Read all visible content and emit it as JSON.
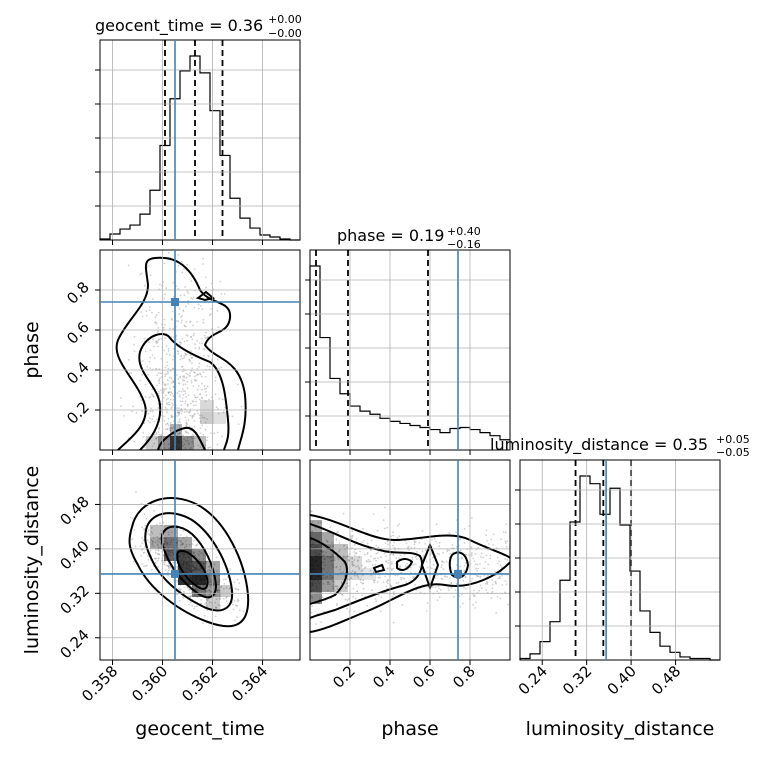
{
  "chart_data": {
    "type": "corner",
    "truth_color": "#4682b4",
    "grid": true,
    "parameters": [
      {
        "name": "geocent_time",
        "range": [
          0.3575,
          0.3655
        ],
        "ticks": [
          "0.358",
          "0.360",
          "0.362",
          "0.364"
        ],
        "tick_values": [
          0.358,
          0.36,
          0.362,
          0.364
        ],
        "truth": 0.3605,
        "title_main": "geocent_time = 0.36",
        "title_sup": "+0.00",
        "title_sub": "−0.00",
        "quantiles": [
          0.3601,
          0.3613,
          0.3624
        ]
      },
      {
        "name": "phase",
        "range": [
          0.0,
          1.0
        ],
        "ticks": [
          "0.2",
          "0.4",
          "0.6",
          "0.8"
        ],
        "tick_values": [
          0.2,
          0.4,
          0.6,
          0.8
        ],
        "truth": 0.74,
        "title_main": "phase = 0.19",
        "title_sup": "+0.40",
        "title_sub": "−0.16",
        "quantiles": [
          0.03,
          0.19,
          0.59
        ]
      },
      {
        "name": "luminosity_distance",
        "range": [
          0.2,
          0.56
        ],
        "ticks": [
          "0.24",
          "0.32",
          "0.40",
          "0.48"
        ],
        "tick_values": [
          0.24,
          0.32,
          0.4,
          0.48
        ],
        "truth": 0.355,
        "title_main": "luminosity_distance = 0.35",
        "title_sup": "+0.05",
        "title_sub": "−0.05",
        "quantiles": [
          0.3,
          0.35,
          0.4
        ]
      }
    ],
    "histograms": [
      {
        "param": "geocent_time",
        "bins": [
          0.3575,
          0.3579,
          0.3583,
          0.3587,
          0.3591,
          0.3595,
          0.3599,
          0.3603,
          0.3607,
          0.3611,
          0.3615,
          0.3619,
          0.3623,
          0.3627,
          0.3631,
          0.3635,
          0.3639,
          0.3643,
          0.3647,
          0.3651,
          0.3655
        ],
        "counts": [
          1,
          6,
          11,
          15,
          26,
          50,
          95,
          142,
          170,
          185,
          168,
          130,
          85,
          42,
          22,
          12,
          5,
          3,
          1,
          0
        ]
      },
      {
        "param": "phase",
        "bins": [
          0.0,
          0.05,
          0.1,
          0.15,
          0.2,
          0.25,
          0.3,
          0.35,
          0.4,
          0.45,
          0.5,
          0.55,
          0.6,
          0.65,
          0.7,
          0.75,
          0.8,
          0.85,
          0.9,
          0.95,
          1.0
        ],
        "counts": [
          180,
          110,
          70,
          55,
          43,
          38,
          35,
          31,
          28,
          26,
          24,
          22,
          20,
          17,
          21,
          22,
          20,
          17,
          14,
          10
        ]
      },
      {
        "param": "luminosity_distance",
        "bins": [
          0.2,
          0.218,
          0.236,
          0.254,
          0.272,
          0.29,
          0.308,
          0.326,
          0.344,
          0.362,
          0.38,
          0.398,
          0.416,
          0.434,
          0.452,
          0.47,
          0.488,
          0.506,
          0.524,
          0.542,
          0.56
        ],
        "counts": [
          1,
          4,
          12,
          25,
          52,
          90,
          120,
          115,
          95,
          112,
          88,
          58,
          32,
          18,
          9,
          5,
          2,
          1,
          1,
          0
        ]
      }
    ],
    "pairs": [
      {
        "x": "geocent_time",
        "y": "phase"
      },
      {
        "x": "geocent_time",
        "y": "luminosity_distance"
      },
      {
        "x": "phase",
        "y": "luminosity_distance"
      }
    ]
  }
}
